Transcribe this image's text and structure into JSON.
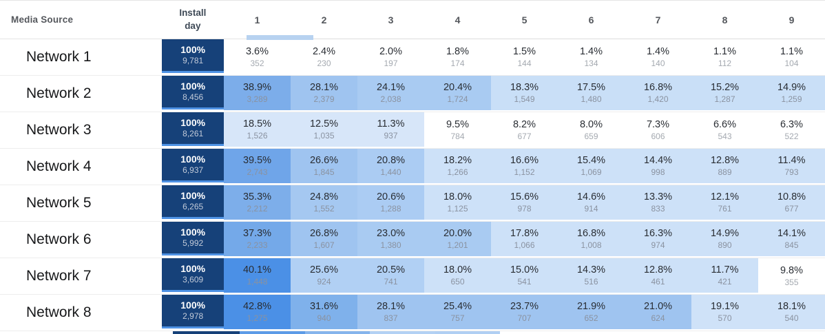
{
  "colors": {
    "accent_navy": "#164179",
    "navy_edge": "#4E92E4",
    "scrollbar_thumb": "#B7D2F0",
    "scrollbar_track": "#DCDCDC",
    "row_divider": "#EDEDED",
    "header_divider": "#E3E3E3"
  },
  "table": {
    "header": {
      "media_source": "Media Source",
      "install_day": "Install day"
    },
    "day_columns": [
      "1",
      "2",
      "3",
      "4",
      "5",
      "6",
      "7",
      "8",
      "9"
    ],
    "rows": [
      {
        "name": "Network 1",
        "install": {
          "pct": "100%",
          "count": "9,781"
        },
        "cells": [
          {
            "pct": "3.6%",
            "count": "352",
            "bg": "#FFFFFF"
          },
          {
            "pct": "2.4%",
            "count": "230",
            "bg": "#FFFFFF"
          },
          {
            "pct": "2.0%",
            "count": "197",
            "bg": "#FFFFFF"
          },
          {
            "pct": "1.8%",
            "count": "174",
            "bg": "#FFFFFF"
          },
          {
            "pct": "1.5%",
            "count": "144",
            "bg": "#FFFFFF"
          },
          {
            "pct": "1.4%",
            "count": "134",
            "bg": "#FFFFFF"
          },
          {
            "pct": "1.4%",
            "count": "140",
            "bg": "#FFFFFF"
          },
          {
            "pct": "1.1%",
            "count": "112",
            "bg": "#FFFFFF"
          },
          {
            "pct": "1.1%",
            "count": "104",
            "bg": "#FFFFFF"
          }
        ]
      },
      {
        "name": "Network 2",
        "install": {
          "pct": "100%",
          "count": "8,456"
        },
        "cells": [
          {
            "pct": "38.9%",
            "count": "3,289",
            "bg": "#7CADEA"
          },
          {
            "pct": "28.1%",
            "count": "2,379",
            "bg": "#9FC4F0"
          },
          {
            "pct": "24.1%",
            "count": "2,038",
            "bg": "#A9CBF2"
          },
          {
            "pct": "20.4%",
            "count": "1,724",
            "bg": "#A9CBF2"
          },
          {
            "pct": "18.3%",
            "count": "1,549",
            "bg": "#C9DFF7"
          },
          {
            "pct": "17.5%",
            "count": "1,480",
            "bg": "#C9DFF7"
          },
          {
            "pct": "16.8%",
            "count": "1,420",
            "bg": "#C9DFF7"
          },
          {
            "pct": "15.2%",
            "count": "1,287",
            "bg": "#C9DFF7"
          },
          {
            "pct": "14.9%",
            "count": "1,259",
            "bg": "#C9DFF7"
          }
        ]
      },
      {
        "name": "Network 3",
        "install": {
          "pct": "100%",
          "count": "8,261"
        },
        "cells": [
          {
            "pct": "18.5%",
            "count": "1,526",
            "bg": "#D7E6F9"
          },
          {
            "pct": "12.5%",
            "count": "1,035",
            "bg": "#D7E6F9"
          },
          {
            "pct": "11.3%",
            "count": "937",
            "bg": "#D7E6F9"
          },
          {
            "pct": "9.5%",
            "count": "784",
            "bg": "#FFFFFF"
          },
          {
            "pct": "8.2%",
            "count": "677",
            "bg": "#FFFFFF"
          },
          {
            "pct": "8.0%",
            "count": "659",
            "bg": "#FFFFFF"
          },
          {
            "pct": "7.3%",
            "count": "606",
            "bg": "#FFFFFF"
          },
          {
            "pct": "6.6%",
            "count": "543",
            "bg": "#FFFFFF"
          },
          {
            "pct": "6.3%",
            "count": "522",
            "bg": "#FFFFFF"
          }
        ]
      },
      {
        "name": "Network 4",
        "install": {
          "pct": "100%",
          "count": "6,937"
        },
        "cells": [
          {
            "pct": "39.5%",
            "count": "2,743",
            "bg": "#6FA5E9"
          },
          {
            "pct": "26.6%",
            "count": "1,845",
            "bg": "#9FC4F0"
          },
          {
            "pct": "20.8%",
            "count": "1,440",
            "bg": "#ABCCF3"
          },
          {
            "pct": "18.2%",
            "count": "1,266",
            "bg": "#CDE1F8"
          },
          {
            "pct": "16.6%",
            "count": "1,152",
            "bg": "#CDE1F8"
          },
          {
            "pct": "15.4%",
            "count": "1,069",
            "bg": "#CDE1F8"
          },
          {
            "pct": "14.4%",
            "count": "998",
            "bg": "#CDE1F8"
          },
          {
            "pct": "12.8%",
            "count": "889",
            "bg": "#CDE1F8"
          },
          {
            "pct": "11.4%",
            "count": "793",
            "bg": "#CDE1F8"
          }
        ]
      },
      {
        "name": "Network 5",
        "install": {
          "pct": "100%",
          "count": "6,265"
        },
        "cells": [
          {
            "pct": "35.3%",
            "count": "2,212",
            "bg": "#7DAEEA"
          },
          {
            "pct": "24.8%",
            "count": "1,552",
            "bg": "#A5C8F1"
          },
          {
            "pct": "20.6%",
            "count": "1,288",
            "bg": "#ABCCF3"
          },
          {
            "pct": "18.0%",
            "count": "1,125",
            "bg": "#CDE1F8"
          },
          {
            "pct": "15.6%",
            "count": "978",
            "bg": "#CDE1F8"
          },
          {
            "pct": "14.6%",
            "count": "914",
            "bg": "#CDE1F8"
          },
          {
            "pct": "13.3%",
            "count": "833",
            "bg": "#CDE1F8"
          },
          {
            "pct": "12.1%",
            "count": "761",
            "bg": "#CDE1F8"
          },
          {
            "pct": "10.8%",
            "count": "677",
            "bg": "#CDE1F8"
          }
        ]
      },
      {
        "name": "Network 6",
        "install": {
          "pct": "100%",
          "count": "5,992"
        },
        "cells": [
          {
            "pct": "37.3%",
            "count": "2,233",
            "bg": "#74A9E9"
          },
          {
            "pct": "26.8%",
            "count": "1,607",
            "bg": "#9FC4F0"
          },
          {
            "pct": "23.0%",
            "count": "1,380",
            "bg": "#A9CBF2"
          },
          {
            "pct": "20.0%",
            "count": "1,201",
            "bg": "#A9CBF2"
          },
          {
            "pct": "17.8%",
            "count": "1,066",
            "bg": "#CDE1F8"
          },
          {
            "pct": "16.8%",
            "count": "1,008",
            "bg": "#CDE1F8"
          },
          {
            "pct": "16.3%",
            "count": "974",
            "bg": "#CDE1F8"
          },
          {
            "pct": "14.9%",
            "count": "890",
            "bg": "#CDE1F8"
          },
          {
            "pct": "14.1%",
            "count": "845",
            "bg": "#CDE1F8"
          }
        ]
      },
      {
        "name": "Network 7",
        "install": {
          "pct": "100%",
          "count": "3,609"
        },
        "cells": [
          {
            "pct": "40.1%",
            "count": "1,448",
            "bg": "#4B90E6"
          },
          {
            "pct": "25.6%",
            "count": "924",
            "bg": "#B1D0F4"
          },
          {
            "pct": "20.5%",
            "count": "741",
            "bg": "#B1D0F4"
          },
          {
            "pct": "18.0%",
            "count": "650",
            "bg": "#CDE1F8"
          },
          {
            "pct": "15.0%",
            "count": "541",
            "bg": "#CDE1F8"
          },
          {
            "pct": "14.3%",
            "count": "516",
            "bg": "#CDE1F8"
          },
          {
            "pct": "12.8%",
            "count": "461",
            "bg": "#CDE1F8"
          },
          {
            "pct": "11.7%",
            "count": "421",
            "bg": "#CDE1F8"
          },
          {
            "pct": "9.8%",
            "count": "355",
            "bg": "#FFFFFF"
          }
        ]
      },
      {
        "name": "Network 8",
        "install": {
          "pct": "100%",
          "count": "2,978"
        },
        "cells": [
          {
            "pct": "42.8%",
            "count": "1,275",
            "bg": "#4B90E6"
          },
          {
            "pct": "31.6%",
            "count": "940",
            "bg": "#7FB1EB"
          },
          {
            "pct": "28.1%",
            "count": "837",
            "bg": "#9FC4F0"
          },
          {
            "pct": "25.4%",
            "count": "757",
            "bg": "#9FC4F0"
          },
          {
            "pct": "23.7%",
            "count": "707",
            "bg": "#9FC4F0"
          },
          {
            "pct": "21.9%",
            "count": "652",
            "bg": "#9FC4F0"
          },
          {
            "pct": "21.0%",
            "count": "624",
            "bg": "#9FC4F0"
          },
          {
            "pct": "19.1%",
            "count": "570",
            "bg": "#CFE2F8"
          },
          {
            "pct": "18.1%",
            "count": "540",
            "bg": "#CFE2F8"
          }
        ]
      }
    ],
    "partial_row": {
      "install_bg": "#164179",
      "cell_colors": [
        "#5C9BE7",
        "#85B4EC",
        "#B3D1F4",
        "#B0CFF3",
        "#FFFFFF",
        "#FFFFFF",
        "#FFFFFF",
        "#FFFFFF",
        "#FFFFFF"
      ]
    }
  }
}
